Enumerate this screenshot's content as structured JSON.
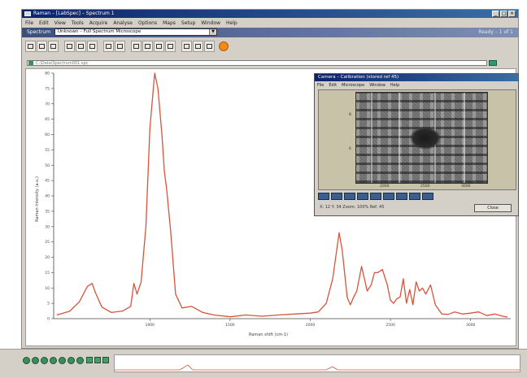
{
  "window": {
    "title": "Raman – [LabSpec] – Spectrum 1",
    "buttons": [
      "_",
      "□",
      "×"
    ]
  },
  "menu": [
    "File",
    "Edit",
    "View",
    "Tools",
    "Acquire",
    "Analyse",
    "Options",
    "Maps",
    "Setup",
    "Window",
    "Help"
  ],
  "selection": {
    "label": "Spectrum",
    "value": "Unknown – Full Spectrum Microscope",
    "right": "Ready – 1 of 1"
  },
  "addressbar": {
    "text": "C:\\Data\\Spectrum001.spc"
  },
  "colors": {
    "spectrum": "#d9533a",
    "titlebar": "#0a246a"
  },
  "chart_data": {
    "type": "line",
    "title": "",
    "xlabel": "Raman shift (cm-1)",
    "ylabel": "Raman Intensity (a.u.)",
    "xlim": [
      400,
      3250
    ],
    "ylim": [
      0,
      80
    ],
    "xticks": [
      1000,
      1500,
      2000,
      2500,
      3000
    ],
    "yticks": [
      0,
      5,
      10,
      15,
      20,
      25,
      30,
      35,
      40,
      45,
      50,
      55,
      60,
      65,
      70,
      75,
      80
    ],
    "series": [
      {
        "name": "",
        "x": [
          420,
          500,
          560,
          610,
          640,
          660,
          700,
          760,
          830,
          880,
          900,
          920,
          945,
          975,
          1000,
          1030,
          1050,
          1075,
          1090,
          1105,
          1130,
          1160,
          1200,
          1260,
          1330,
          1400,
          1500,
          1600,
          1700,
          1800,
          1900,
          2000,
          2050,
          2100,
          2140,
          2180,
          2200,
          2230,
          2250,
          2270,
          2290,
          2320,
          2355,
          2380,
          2400,
          2420,
          2450,
          2480,
          2500,
          2520,
          2540,
          2560,
          2580,
          2600,
          2620,
          2640,
          2660,
          2680,
          2700,
          2720,
          2750,
          2780,
          2820,
          2860,
          2900,
          2950,
          3000,
          3050,
          3100,
          3150,
          3200,
          3230
        ],
        "y": [
          1.2,
          2.4,
          5.5,
          10.5,
          11.5,
          8.5,
          3.8,
          2.0,
          2.5,
          4.0,
          11.5,
          8.0,
          12.0,
          30.0,
          62.0,
          80.0,
          75.0,
          60.0,
          48.0,
          42.0,
          28.0,
          8.0,
          3.5,
          4.0,
          2.0,
          1.2,
          0.6,
          1.2,
          0.8,
          1.2,
          1.5,
          1.8,
          2.2,
          5.0,
          13.0,
          28.0,
          22.0,
          7.0,
          4.5,
          7.0,
          9.0,
          17.0,
          9.0,
          11.0,
          15.0,
          15.0,
          16.0,
          11.0,
          6.0,
          5.0,
          6.5,
          7.0,
          13.0,
          5.0,
          9.5,
          4.5,
          12.0,
          9.0,
          10.0,
          8.0,
          11.0,
          4.5,
          1.5,
          1.4,
          2.2,
          1.5,
          1.8,
          2.2,
          1.0,
          1.5,
          0.8,
          0.5
        ]
      }
    ],
    "grid": false,
    "legend": "none"
  },
  "popup": {
    "title": "Camera – Calibration (stored ref 45)",
    "menu": [
      "File",
      "Edit",
      "Microscope",
      "Window",
      "Help"
    ],
    "axis": [
      "2000",
      "2500",
      "3000"
    ],
    "ylabels": [
      "8",
      "6"
    ],
    "status": "X: 12 Y: 34  Zoom: 100%  Ref: 45",
    "ok_label": "Close"
  }
}
